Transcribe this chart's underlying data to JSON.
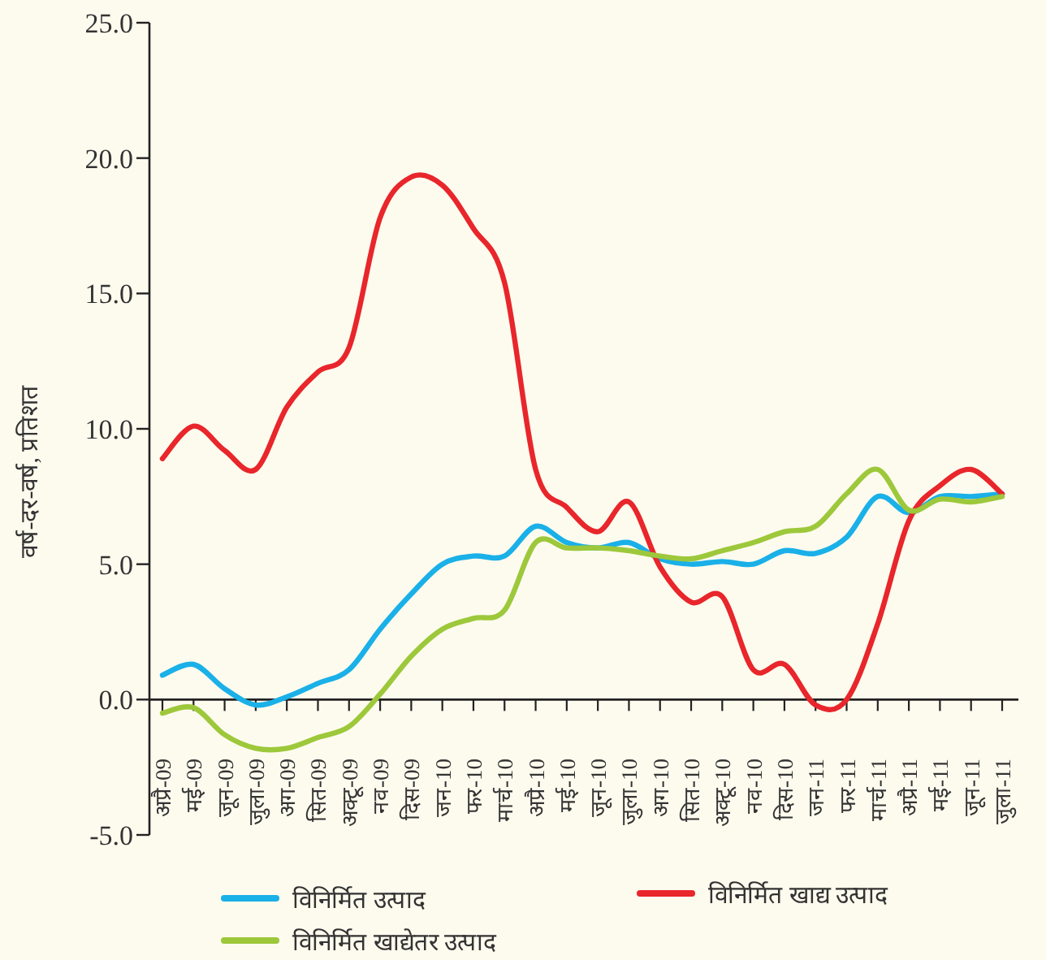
{
  "chart_data": {
    "type": "line",
    "ylabel": "वर्ष-दर-वर्ष, प्रतिशत",
    "legend": "bottom",
    "categories": [
      "अप्रै-09",
      "मई-09",
      "जून-09",
      "जुला-09",
      "अग-09",
      "सित-09",
      "अक्टू-09",
      "नव-09",
      "दिस-09",
      "जन-10",
      "फर-10",
      "मार्च-10",
      "अप्रै-10",
      "मई-10",
      "जून-10",
      "जुला-10",
      "अग-10",
      "सित-10",
      "अक्टू-10",
      "नव-10",
      "दिस-10",
      "जन-11",
      "फर-11",
      "मार्च-11",
      "अप्रै-11",
      "मई-11",
      "जून-11",
      "जुला-11"
    ],
    "ylim": [
      -5,
      25
    ],
    "yticks": [
      {
        "value": -5,
        "label": "-5.0"
      },
      {
        "value": 0,
        "label": "0.0"
      },
      {
        "value": 5,
        "label": "5.0"
      },
      {
        "value": 10,
        "label": "10.0"
      },
      {
        "value": 15,
        "label": "15.0"
      },
      {
        "value": 20,
        "label": "20.0"
      },
      {
        "value": 25,
        "label": "25.0"
      }
    ],
    "series": [
      {
        "name": "विनिर्मित उत्पाद",
        "color": "#1ab0e8",
        "values": [
          0.9,
          1.3,
          0.4,
          -0.2,
          0.1,
          0.6,
          1.1,
          2.6,
          3.9,
          5.0,
          5.3,
          5.3,
          6.4,
          5.8,
          5.6,
          5.8,
          5.2,
          5.0,
          5.1,
          5.0,
          5.5,
          5.4,
          6.0,
          7.5,
          6.9,
          7.5,
          7.5,
          7.6
        ]
      },
      {
        "name": "विनिर्मित खाद्य उत्पाद",
        "color": "#e8262b",
        "values": [
          8.9,
          10.1,
          9.2,
          8.5,
          10.8,
          12.1,
          13.0,
          17.8,
          19.3,
          19.0,
          17.4,
          15.4,
          8.5,
          7.1,
          6.2,
          7.3,
          4.9,
          3.6,
          3.8,
          1.1,
          1.3,
          -0.2,
          0.0,
          2.8,
          6.6,
          7.9,
          8.5,
          7.6
        ]
      },
      {
        "name": "विनिर्मित खाद्येतर उत्पाद",
        "color": "#9dc83b",
        "values": [
          -0.5,
          -0.3,
          -1.3,
          -1.8,
          -1.8,
          -1.4,
          -1.0,
          0.2,
          1.6,
          2.6,
          3.0,
          3.3,
          5.8,
          5.6,
          5.6,
          5.5,
          5.3,
          5.2,
          5.5,
          5.8,
          6.2,
          6.4,
          7.6,
          8.5,
          7.0,
          7.4,
          7.3,
          7.5
        ]
      }
    ]
  }
}
